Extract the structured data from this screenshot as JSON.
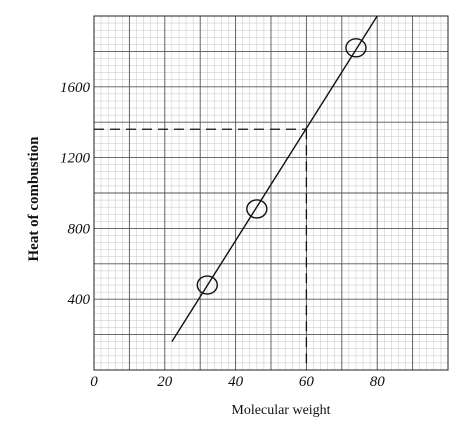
{
  "chart_data": {
    "type": "scatter",
    "xlabel": "Molecular weight",
    "ylabel": "Heat of combustion",
    "xlim": [
      0,
      100
    ],
    "ylim": [
      0,
      2000
    ],
    "x_ticks": [
      "0",
      "20",
      "40",
      "60",
      "80"
    ],
    "y_ticks": [
      "400",
      "800",
      "1200",
      "1600"
    ],
    "grid": true,
    "points": [
      {
        "x": 32,
        "y": 480
      },
      {
        "x": 46,
        "y": 910
      },
      {
        "x": 74,
        "y": 1820
      }
    ],
    "fit_line": {
      "x": [
        22,
        80
      ],
      "y": [
        160,
        2000
      ]
    },
    "annotation": {
      "x": 60,
      "y": 1360
    }
  }
}
